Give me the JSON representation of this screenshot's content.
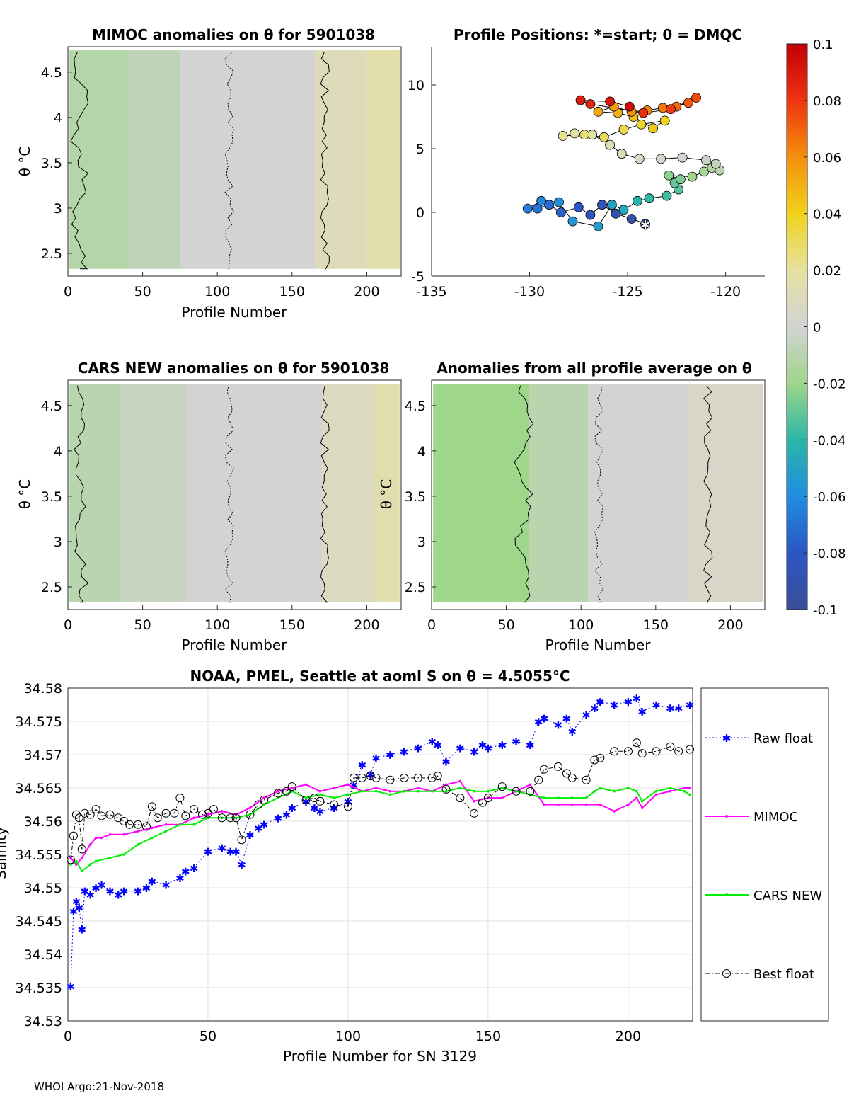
{
  "footer": "WHOI Argo:21-Nov-2018",
  "colorbar": {
    "ticks": [
      "0.1",
      "0.08",
      "0.06",
      "0.04",
      "0.02",
      "0",
      "-0.02",
      "-0.04",
      "-0.06",
      "-0.08",
      "-0.1"
    ],
    "range": [
      -0.1,
      0.1
    ]
  },
  "chart_data": [
    {
      "type": "heatmap",
      "id": "mimoc",
      "title": "MIMOC anomalies on θ  for 5901038",
      "xlabel": "Profile Number",
      "ylabel": "θ °C",
      "xlim": [
        0,
        223
      ],
      "ylim": [
        2.25,
        4.78
      ],
      "xticks": [
        "0",
        "50",
        "100",
        "150",
        "200"
      ],
      "yticks": [
        "2.5",
        "3",
        "3.5",
        "4",
        "4.5"
      ],
      "bands": [
        {
          "x0": 1,
          "x1": 40,
          "value": -0.012
        },
        {
          "x0": 40,
          "x1": 75,
          "value": -0.008
        },
        {
          "x0": 75,
          "x1": 165,
          "value": 0.0
        },
        {
          "x0": 165,
          "x1": 200,
          "value": 0.01
        },
        {
          "x0": 200,
          "x1": 222,
          "value": 0.016
        }
      ]
    },
    {
      "type": "scatter",
      "id": "positions",
      "title": "Profile Positions: *=start; 0 = DMQC",
      "xlabel": "",
      "ylabel": "",
      "xlim": [
        -135,
        -118
      ],
      "ylim": [
        -5,
        13
      ],
      "xticks": [
        "-135",
        "-130",
        "-125",
        "-120"
      ],
      "yticks": [
        "-5",
        "0",
        "5",
        "10"
      ],
      "start": [
        -124.1,
        -0.9
      ],
      "points": [
        [
          -124.1,
          -0.9
        ],
        [
          -124.8,
          -0.5
        ],
        [
          -125.6,
          -0.1
        ],
        [
          -126.3,
          0.6
        ],
        [
          -126.9,
          -0.2
        ],
        [
          -127.5,
          0.4
        ],
        [
          -128.4,
          0.0
        ],
        [
          -129.0,
          0.6
        ],
        [
          -129.6,
          0.3
        ],
        [
          -130.1,
          0.3
        ],
        [
          -129.4,
          0.9
        ],
        [
          -128.5,
          0.8
        ],
        [
          -127.8,
          -0.7
        ],
        [
          -126.5,
          -1.1
        ],
        [
          -125.8,
          0.6
        ],
        [
          -125.2,
          0.2
        ],
        [
          -124.5,
          0.9
        ],
        [
          -123.9,
          1.1
        ],
        [
          -123.0,
          1.3
        ],
        [
          -122.4,
          1.8
        ],
        [
          -122.6,
          2.3
        ],
        [
          -122.3,
          2.6
        ],
        [
          -122.9,
          2.9
        ],
        [
          -121.7,
          2.8
        ],
        [
          -121.1,
          3.2
        ],
        [
          -120.7,
          3.5
        ],
        [
          -120.3,
          3.3
        ],
        [
          -120.5,
          3.8
        ],
        [
          -121.0,
          4.1
        ],
        [
          -122.2,
          4.3
        ],
        [
          -123.3,
          4.2
        ],
        [
          -124.4,
          4.2
        ],
        [
          -125.3,
          4.6
        ],
        [
          -125.9,
          5.3
        ],
        [
          -126.8,
          6.1
        ],
        [
          -127.7,
          6.2
        ],
        [
          -128.3,
          6.0
        ],
        [
          -127.2,
          6.1
        ],
        [
          -126.2,
          5.9
        ],
        [
          -125.2,
          6.5
        ],
        [
          -124.3,
          6.9
        ],
        [
          -123.1,
          7.2
        ],
        [
          -123.7,
          6.6
        ],
        [
          -124.7,
          7.5
        ],
        [
          -125.5,
          7.8
        ],
        [
          -126.5,
          7.9
        ],
        [
          -125.7,
          8.3
        ],
        [
          -124.8,
          7.9
        ],
        [
          -124.0,
          8.0
        ],
        [
          -123.2,
          8.2
        ],
        [
          -122.5,
          8.3
        ],
        [
          -121.9,
          8.6
        ],
        [
          -121.5,
          9.0
        ],
        [
          -122.8,
          8.1
        ],
        [
          -124.2,
          7.8
        ],
        [
          -126.9,
          8.5
        ],
        [
          -127.4,
          8.8
        ],
        [
          -125.9,
          8.7
        ],
        [
          -124.9,
          8.3
        ]
      ]
    },
    {
      "type": "heatmap",
      "id": "cars",
      "title": "CARS NEW anomalies on θ for 5901038",
      "xlabel": "Profile Number",
      "ylabel": "θ °C",
      "xlim": [
        0,
        223
      ],
      "ylim": [
        2.25,
        4.78
      ],
      "xticks": [
        "0",
        "50",
        "100",
        "150",
        "200"
      ],
      "yticks": [
        "2.5",
        "3",
        "3.5",
        "4",
        "4.5"
      ],
      "bands": [
        {
          "x0": 1,
          "x1": 35,
          "value": -0.01
        },
        {
          "x0": 35,
          "x1": 80,
          "value": -0.005
        },
        {
          "x0": 80,
          "x1": 170,
          "value": 0.0
        },
        {
          "x0": 170,
          "x1": 205,
          "value": 0.008
        },
        {
          "x0": 205,
          "x1": 222,
          "value": 0.014
        }
      ]
    },
    {
      "type": "heatmap",
      "id": "allavg",
      "title": "Anomalies from all profile average on θ",
      "xlabel": "Profile Number",
      "ylabel": "θ °C",
      "xlim": [
        0,
        223
      ],
      "ylim": [
        2.25,
        4.78
      ],
      "xticks": [
        "0",
        "50",
        "100",
        "150",
        "200"
      ],
      "yticks": [
        "2.5",
        "3",
        "3.5",
        "4",
        "4.5"
      ],
      "bands": [
        {
          "x0": 1,
          "x1": 65,
          "value": -0.02
        },
        {
          "x0": 65,
          "x1": 105,
          "value": -0.01
        },
        {
          "x0": 105,
          "x1": 170,
          "value": 0.0
        },
        {
          "x0": 170,
          "x1": 222,
          "value": 0.004
        }
      ]
    },
    {
      "type": "line",
      "id": "salinity",
      "title": "NOAA, PMEL, Seattle at aoml S on θ = 4.5055°C",
      "xlabel": "Profile Number for SN 3129",
      "ylabel": "Salinity",
      "xlim": [
        0,
        223
      ],
      "ylim": [
        34.53,
        34.58
      ],
      "xticks": [
        "0",
        "50",
        "100",
        "150",
        "200"
      ],
      "yticks": [
        "34.53",
        "34.535",
        "34.54",
        "34.545",
        "34.55",
        "34.555",
        "34.56",
        "34.565",
        "34.57",
        "34.575",
        "34.58"
      ],
      "legend": [
        "Raw float",
        "MIMOC",
        "CARS NEW",
        "Best float"
      ],
      "series": [
        {
          "name": "Raw float",
          "color": "#0000ff",
          "marker": "star",
          "x": [
            1,
            2,
            3,
            4,
            5,
            6,
            8,
            10,
            12,
            15,
            18,
            20,
            25,
            28,
            30,
            35,
            40,
            42,
            45,
            50,
            55,
            58,
            60,
            62,
            65,
            68,
            70,
            75,
            78,
            80,
            85,
            88,
            90,
            95,
            100,
            102,
            105,
            108,
            110,
            115,
            120,
            125,
            130,
            132,
            135,
            140,
            145,
            148,
            150,
            155,
            160,
            165,
            168,
            170,
            175,
            178,
            180,
            185,
            188,
            190,
            195,
            200,
            203,
            205,
            210,
            215,
            218,
            222
          ],
          "y": [
            34.5352,
            34.5465,
            34.548,
            34.547,
            34.5438,
            34.5495,
            34.549,
            34.55,
            34.5505,
            34.5495,
            34.549,
            34.5495,
            34.5495,
            34.55,
            34.551,
            34.5505,
            34.5515,
            34.5525,
            34.553,
            34.5555,
            34.556,
            34.5555,
            34.5555,
            34.5535,
            34.558,
            34.559,
            34.5595,
            34.5605,
            34.561,
            34.562,
            34.563,
            34.562,
            34.5615,
            34.562,
            34.563,
            34.5655,
            34.5685,
            34.567,
            34.5695,
            34.57,
            34.5705,
            34.571,
            34.572,
            34.5715,
            34.569,
            34.571,
            34.5705,
            34.5715,
            34.571,
            34.5715,
            34.572,
            34.5715,
            34.575,
            34.5755,
            34.5745,
            34.5755,
            34.5735,
            34.576,
            34.577,
            34.578,
            34.5775,
            34.578,
            34.5785,
            34.5765,
            34.5775,
            34.577,
            34.577,
            34.5775
          ]
        },
        {
          "name": "MIMOC",
          "color": "#ff00ff",
          "marker": "dot",
          "x": [
            1,
            3,
            5,
            8,
            10,
            12,
            15,
            20,
            25,
            30,
            35,
            40,
            45,
            50,
            55,
            60,
            65,
            70,
            75,
            80,
            85,
            90,
            95,
            100,
            105,
            110,
            115,
            120,
            125,
            130,
            135,
            140,
            145,
            150,
            155,
            160,
            165,
            170,
            175,
            180,
            185,
            190,
            195,
            200,
            203,
            205,
            210,
            215,
            220,
            222
          ],
          "y": [
            34.5545,
            34.5535,
            34.5545,
            34.5565,
            34.5575,
            34.5575,
            34.558,
            34.558,
            34.5585,
            34.559,
            34.5595,
            34.5595,
            34.5605,
            34.561,
            34.5615,
            34.561,
            34.562,
            34.5635,
            34.5645,
            34.565,
            34.5655,
            34.5645,
            34.565,
            34.5655,
            34.5645,
            34.565,
            34.5645,
            34.5645,
            34.565,
            34.5645,
            34.5655,
            34.566,
            34.563,
            34.5635,
            34.5635,
            34.5645,
            34.5655,
            34.5625,
            34.5625,
            34.5625,
            34.5625,
            34.5625,
            34.5615,
            34.5625,
            34.5635,
            34.562,
            34.564,
            34.5645,
            34.565,
            34.565
          ]
        },
        {
          "name": "CARS NEW",
          "color": "#00ee00",
          "marker": "dot",
          "x": [
            1,
            3,
            5,
            8,
            10,
            15,
            20,
            25,
            30,
            35,
            40,
            45,
            50,
            55,
            60,
            65,
            70,
            75,
            80,
            85,
            90,
            95,
            100,
            105,
            110,
            115,
            120,
            125,
            130,
            135,
            140,
            145,
            150,
            155,
            160,
            165,
            170,
            175,
            180,
            185,
            188,
            190,
            195,
            200,
            203,
            205,
            210,
            215,
            220,
            222
          ],
          "y": [
            34.5535,
            34.554,
            34.5525,
            34.5535,
            34.554,
            34.5545,
            34.555,
            34.5565,
            34.5575,
            34.5585,
            34.5595,
            34.5595,
            34.5605,
            34.5605,
            34.5605,
            34.561,
            34.5625,
            34.5635,
            34.5645,
            34.5635,
            34.564,
            34.5635,
            34.564,
            34.5645,
            34.5645,
            34.564,
            34.5645,
            34.5645,
            34.5645,
            34.5645,
            34.565,
            34.5645,
            34.5645,
            34.565,
            34.5645,
            34.564,
            34.5635,
            34.5635,
            34.5635,
            34.5635,
            34.5645,
            34.565,
            34.5645,
            34.565,
            34.5645,
            34.563,
            34.5645,
            34.565,
            34.5645,
            34.564
          ]
        },
        {
          "name": "Best float",
          "color": "#000000",
          "marker": "circle",
          "x": [
            1,
            2,
            3,
            4,
            5,
            6,
            8,
            10,
            12,
            15,
            18,
            20,
            22,
            25,
            28,
            30,
            32,
            35,
            38,
            40,
            42,
            45,
            48,
            50,
            52,
            55,
            58,
            60,
            62,
            65,
            68,
            70,
            75,
            78,
            80,
            85,
            88,
            90,
            95,
            100,
            102,
            105,
            108,
            110,
            115,
            120,
            125,
            130,
            132,
            135,
            140,
            145,
            148,
            150,
            155,
            160,
            165,
            168,
            170,
            175,
            178,
            180,
            185,
            188,
            190,
            195,
            200,
            203,
            205,
            210,
            215,
            218,
            222
          ],
          "y": [
            34.5542,
            34.5578,
            34.561,
            34.5605,
            34.5558,
            34.5612,
            34.561,
            34.5618,
            34.5608,
            34.561,
            34.5605,
            34.56,
            34.5595,
            34.5595,
            34.5592,
            34.5622,
            34.5605,
            34.5612,
            34.5612,
            34.5635,
            34.5608,
            34.5618,
            34.561,
            34.5612,
            34.5618,
            34.5605,
            34.5605,
            34.5605,
            34.5572,
            34.561,
            34.5625,
            34.5632,
            34.5642,
            34.5645,
            34.5652,
            34.5632,
            34.5635,
            34.563,
            34.5625,
            34.5622,
            34.5665,
            34.5665,
            34.5668,
            34.5665,
            34.5662,
            34.5665,
            34.5665,
            34.5665,
            34.5668,
            34.5648,
            34.5635,
            34.5612,
            34.5628,
            34.5635,
            34.5652,
            34.5645,
            34.5645,
            34.5662,
            34.5678,
            34.5682,
            34.5672,
            34.5665,
            34.5662,
            34.5692,
            34.5695,
            34.5705,
            34.5705,
            34.5718,
            34.5702,
            34.5705,
            34.5712,
            34.5705,
            34.5708
          ]
        }
      ]
    }
  ]
}
